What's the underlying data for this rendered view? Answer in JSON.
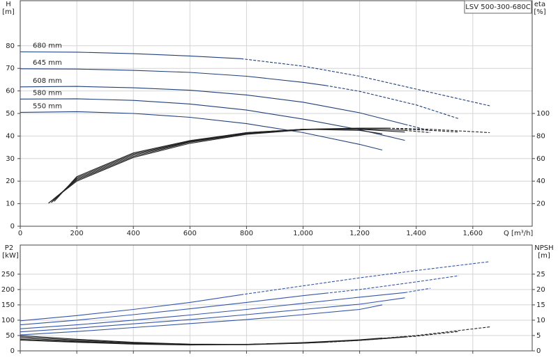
{
  "chart_data": [
    {
      "type": "line",
      "title": "LSV 500-300-680C",
      "y_label": "H",
      "y_unit": "[m]",
      "y2_label": "eta",
      "y2_unit": "[%]",
      "x_label": "Q [m³/h]",
      "xlim": [
        0,
        1810
      ],
      "xticks": [
        0,
        200,
        400,
        600,
        800,
        {
          "value": 1000,
          "label": "1,000"
        },
        {
          "value": 1200,
          "label": "1,200"
        },
        {
          "value": 1400,
          "label": "1,400"
        },
        {
          "value": 1600,
          "label": "1,600"
        }
      ],
      "ylim": [
        0,
        100
      ],
      "yticks": [
        0,
        10,
        20,
        30,
        40,
        50,
        60,
        70,
        80
      ],
      "y2lim": [
        0,
        200
      ],
      "y2ticks": [
        20,
        40,
        60,
        80,
        100
      ],
      "grid": true,
      "series": [
        {
          "name": "680 mm",
          "color": "#1f3f7a",
          "x": [
            0,
            200,
            400,
            600,
            780
          ],
          "values": [
            77.3,
            77.2,
            76.5,
            75.5,
            74.3
          ],
          "extension": {
            "x": [
              780,
              1000,
              1200,
              1400,
              1660
            ],
            "values": [
              74.3,
              71,
              66.5,
              60.8,
              53.4
            ]
          }
        },
        {
          "name": "645 mm",
          "color": "#1f3f7a",
          "x": [
            0,
            200,
            400,
            600,
            800,
            1000,
            1080
          ],
          "values": [
            69.8,
            69.7,
            69.1,
            68.2,
            66.5,
            63.8,
            62.4
          ],
          "extension": {
            "x": [
              1080,
              1200,
              1400,
              1550
            ],
            "values": [
              62.4,
              59.8,
              53.8,
              47.7
            ]
          }
        },
        {
          "name": "608 mm",
          "color": "#1f3f7a",
          "x": [
            0,
            200,
            400,
            600,
            800,
            1000,
            1200,
            1360
          ],
          "values": [
            61.8,
            62,
            61.4,
            60.3,
            58.2,
            55,
            50.3,
            45.2
          ],
          "extension": {
            "x": [
              1360,
              1450
            ],
            "values": [
              45.2,
              42.3
            ]
          }
        },
        {
          "name": "580 mm",
          "color": "#1f3f7a",
          "x": [
            0,
            200,
            400,
            600,
            800,
            1000,
            1200,
            1360
          ],
          "values": [
            56.4,
            56.5,
            55.8,
            54.2,
            51.5,
            47.5,
            42.8,
            38.1
          ]
        },
        {
          "name": "550 mm",
          "color": "#1f3f7a",
          "x": [
            0,
            200,
            400,
            600,
            800,
            1000,
            1200,
            1280
          ],
          "values": [
            50.5,
            50.8,
            50,
            48.3,
            45.5,
            41.5,
            36.3,
            33.8
          ]
        },
        {
          "axis": "y2",
          "color": "#222222",
          "x": [
            100,
            200,
            400,
            600,
            800,
            1000,
            1200,
            1300
          ],
          "values": [
            20.5,
            40,
            61,
            73.5,
            81.5,
            85.5,
            87,
            87
          ],
          "extension": {
            "x": [
              1300,
              1450,
              1660
            ],
            "values": [
              87,
              86,
              83
            ]
          }
        },
        {
          "axis": "y2",
          "color": "#222222",
          "x": [
            100,
            200,
            400,
            600,
            800,
            1000,
            1200,
            1300
          ],
          "values": [
            20.5,
            41,
            62,
            74.5,
            82,
            86,
            87,
            86.8
          ],
          "extension": {
            "x": [
              1300,
              1450,
              1550
            ],
            "values": [
              86.8,
              85,
              83.5
            ]
          }
        },
        {
          "axis": "y2",
          "color": "#222222",
          "x": [
            110,
            200,
            400,
            600,
            800,
            1000,
            1200,
            1360
          ],
          "values": [
            21,
            42,
            63,
            75,
            82.5,
            86,
            86.5,
            85
          ],
          "extension": {
            "x": [
              1360,
              1450
            ],
            "values": [
              85,
              83
            ]
          }
        },
        {
          "axis": "y2",
          "color": "#222222",
          "x": [
            110,
            200,
            400,
            600,
            800,
            1000,
            1200,
            1360
          ],
          "values": [
            21,
            43,
            64,
            75.5,
            83,
            86,
            86,
            83.5
          ]
        },
        {
          "axis": "y2",
          "color": "#222222",
          "x": [
            120,
            200,
            400,
            600,
            800,
            1000,
            1200,
            1280
          ],
          "values": [
            22,
            44,
            65,
            76,
            83,
            86,
            85,
            82
          ]
        }
      ]
    },
    {
      "type": "line",
      "y_label": "P2",
      "y_unit": "[kW]",
      "y2_label": "NPSH",
      "y2_unit": "[m]",
      "ylim": [
        0,
        345
      ],
      "yticks": [
        0,
        50,
        100,
        150,
        200,
        250
      ],
      "y2lim": [
        0,
        34.5
      ],
      "y2ticks": [
        0,
        5,
        10,
        15,
        20,
        25
      ],
      "grid": true,
      "series": [
        {
          "color": "#3355aa",
          "x": [
            0,
            200,
            400,
            600,
            780
          ],
          "values": [
            98,
            115,
            135,
            158,
            183
          ],
          "extension": {
            "x": [
              780,
              1000,
              1200,
              1400,
              1660
            ],
            "values": [
              183,
              212,
              238,
              262,
              291
            ]
          }
        },
        {
          "color": "#3355aa",
          "x": [
            0,
            200,
            400,
            600,
            800,
            1000,
            1080
          ],
          "values": [
            85,
            100,
            118,
            137,
            158,
            180,
            188
          ],
          "extension": {
            "x": [
              1080,
              1200,
              1400,
              1550
            ],
            "values": [
              188,
              200,
              225,
              245
            ]
          }
        },
        {
          "color": "#3355aa",
          "x": [
            0,
            200,
            400,
            600,
            800,
            1000,
            1200,
            1360
          ],
          "values": [
            72,
            85,
            100,
            117,
            135,
            155,
            175,
            190
          ],
          "extension": {
            "x": [
              1360,
              1450
            ],
            "values": [
              190,
              204
            ]
          }
        },
        {
          "color": "#3355aa",
          "x": [
            0,
            200,
            400,
            600,
            800,
            1000,
            1200,
            1360
          ],
          "values": [
            62,
            74,
            88,
            102,
            118,
            135,
            152,
            173
          ]
        },
        {
          "color": "#3355aa",
          "x": [
            0,
            200,
            400,
            600,
            800,
            1000,
            1200,
            1280
          ],
          "values": [
            52,
            63,
            76,
            89,
            102,
            118,
            135,
            150
          ]
        },
        {
          "axis": "y2",
          "color": "#222222",
          "x": [
            0,
            200,
            400,
            600,
            780
          ],
          "values": [
            5,
            3.8,
            2.8,
            2.2,
            2.1
          ],
          "extension": {
            "x": [
              780,
              1000,
              1200,
              1400,
              1660
            ],
            "values": [
              2.1,
              2.5,
              3.5,
              5,
              7.8
            ]
          }
        },
        {
          "axis": "y2",
          "color": "#222222",
          "x": [
            0,
            200,
            400,
            600,
            800,
            1000,
            1080
          ],
          "values": [
            4.6,
            3.5,
            2.6,
            2.1,
            2.1,
            2.5,
            2.8
          ],
          "extension": {
            "x": [
              1080,
              1200,
              1400,
              1550
            ],
            "values": [
              2.8,
              3.4,
              4.8,
              6.3
            ]
          }
        },
        {
          "axis": "y2",
          "color": "#222222",
          "x": [
            0,
            200,
            400,
            600,
            800,
            1000,
            1200,
            1360
          ],
          "values": [
            4.2,
            3.2,
            2.4,
            2,
            2,
            2.5,
            3.4,
            4.5
          ],
          "extension": {
            "x": [
              1360,
              1450
            ],
            "values": [
              4.5,
              5.3
            ]
          }
        },
        {
          "axis": "y2",
          "color": "#222222",
          "x": [
            0,
            200,
            400,
            600,
            800,
            1000,
            1200,
            1360
          ],
          "values": [
            3.8,
            3,
            2.3,
            2,
            2.1,
            2.6,
            3.5,
            4.6
          ]
        },
        {
          "axis": "y2",
          "color": "#222222",
          "x": [
            0,
            200,
            400,
            600,
            800,
            1000,
            1200,
            1280
          ],
          "values": [
            3.5,
            2.8,
            2.2,
            1.9,
            2.1,
            2.7,
            3.6,
            4.2
          ]
        }
      ]
    }
  ]
}
